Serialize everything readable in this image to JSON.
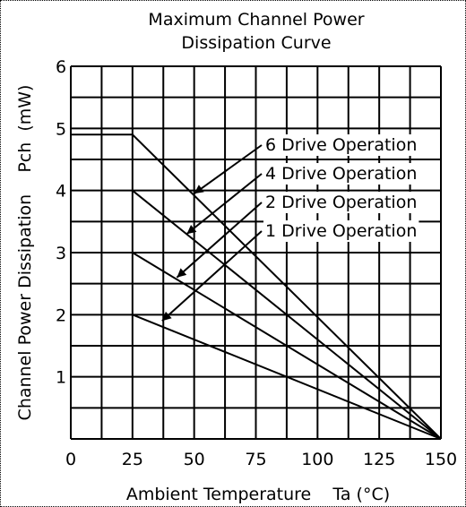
{
  "chart_data": {
    "type": "line",
    "title": [
      "Maximum Channel Power",
      "Dissipation Curve"
    ],
    "xlabel": "Ambient Temperature    Ta (°C)",
    "ylabel": "Channel Power Dissipation    Pch  (mW)",
    "xlim": [
      0,
      150
    ],
    "ylim": [
      0,
      6
    ],
    "xticks": [
      0,
      25,
      50,
      75,
      100,
      125,
      150
    ],
    "yticks": [
      0,
      1,
      2,
      3,
      4,
      5,
      6
    ],
    "xtick_labels": [
      "0",
      "25",
      "50",
      "75",
      "100",
      "125",
      "150"
    ],
    "ytick_labels": [
      "0",
      "1",
      "2",
      "3",
      "4",
      "5",
      "6"
    ],
    "grid": true,
    "series": [
      {
        "name": "6 Drive Operation",
        "x": [
          0,
          25,
          150
        ],
        "y": [
          4.9,
          4.9,
          0
        ]
      },
      {
        "name": "4 Drive Operation",
        "x": [
          25,
          150
        ],
        "y": [
          4.0,
          0
        ]
      },
      {
        "name": "2 Drive Operation",
        "x": [
          25,
          150
        ],
        "y": [
          3.0,
          0
        ]
      },
      {
        "name": "1 Drive Operation",
        "x": [
          25,
          150
        ],
        "y": [
          2.0,
          0
        ]
      }
    ],
    "annotations": [
      {
        "label": "6 Drive Operation",
        "arrow_to": [
          50,
          3.95
        ]
      },
      {
        "label": "4 Drive Operation",
        "arrow_to": [
          47,
          3.3
        ]
      },
      {
        "label": "2 Drive Operation",
        "arrow_to": [
          43,
          2.6
        ]
      },
      {
        "label": "1 Drive Operation",
        "arrow_to": [
          37,
          1.9
        ]
      }
    ]
  }
}
